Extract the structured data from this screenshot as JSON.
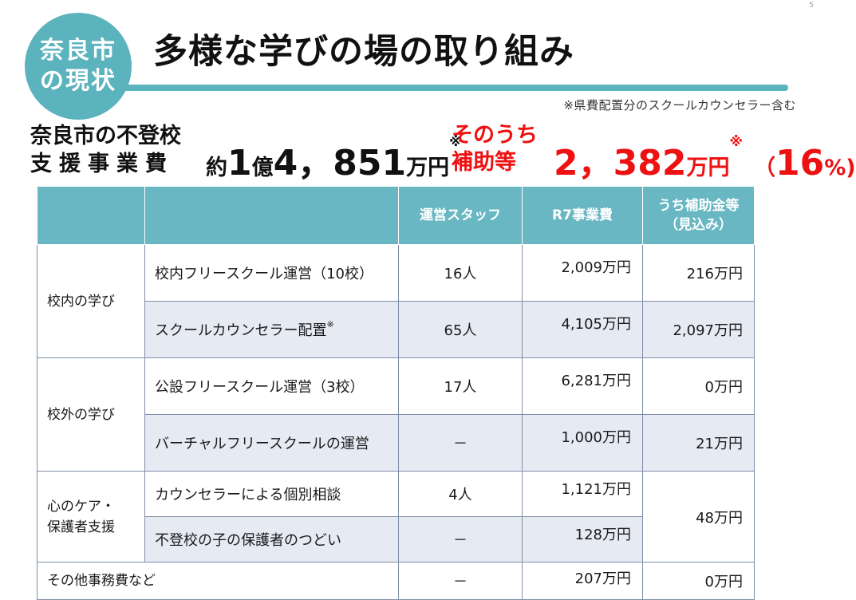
{
  "page_number": "5",
  "badge": {
    "line1": "奈良市",
    "line2": "の現状"
  },
  "title": "多様な学びの場の取り組み",
  "note": "※県費配置分のスクールカウンセラー含む",
  "summary": {
    "label_line1": "奈良市の不登校",
    "label_line2": "支援事業費",
    "amount_prefix": "約",
    "amount_oku": "1",
    "amount_oku_unit": "億",
    "amount_man": "4，851",
    "amount_unit": "万円",
    "amount_mark": "※",
    "subsidy_line1": "そのうち",
    "subsidy_line2": "補助等",
    "subsidy_amount": "2，382",
    "subsidy_unit": "万円",
    "subsidy_mark": "※",
    "subsidy_pct_open": "（",
    "subsidy_pct": "16",
    "subsidy_pct_unit": "%)"
  },
  "table": {
    "headers": [
      "",
      "",
      "運営スタッフ",
      "R7事業費",
      "うち補助金等",
      "（見込み）"
    ],
    "rows": [
      {
        "category": "校内の学び",
        "item": "校内フリースクール運営（10校）",
        "staff": "16人",
        "cost": "2,009万円",
        "subsidy": "216万円"
      },
      {
        "item": "スクールカウンセラー配置",
        "item_mark": "※",
        "staff": "65人",
        "cost": "4,105万円",
        "subsidy": "2,097万円"
      },
      {
        "category": "校外の学び",
        "item": "公設フリースクール運営（3校）",
        "staff": "17人",
        "cost": "6,281万円",
        "subsidy": "0万円"
      },
      {
        "item": "バーチャルフリースクールの運営",
        "staff": "－",
        "cost": "1,000万円",
        "subsidy": "21万円"
      },
      {
        "category_line1": "心のケア・",
        "category_line2": "保護者支援",
        "item": "カウンセラーによる個別相談",
        "staff": "4人",
        "cost": "1,121万円",
        "subsidy": "48万円"
      },
      {
        "item": "不登校の子の保護者のつどい",
        "staff": "－",
        "cost": "128万円"
      },
      {
        "category": "その他事務費など",
        "staff": "－",
        "cost": "207万円",
        "subsidy": "0万円"
      }
    ]
  }
}
